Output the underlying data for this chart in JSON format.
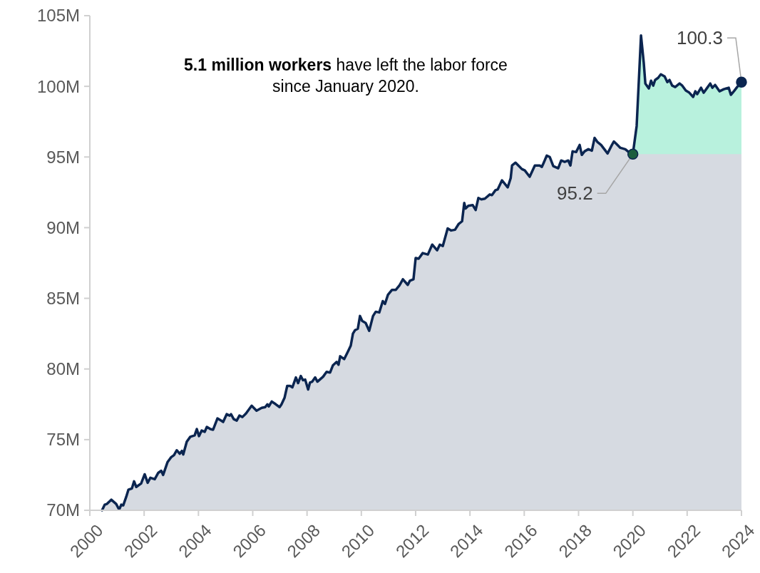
{
  "chart_data": {
    "type": "area",
    "x": [
      2000.45,
      2000.55,
      2000.63,
      2000.79,
      2000.97,
      2001.08,
      2001.16,
      2001.23,
      2001.34,
      2001.42,
      2001.55,
      2001.63,
      2001.71,
      2001.89,
      2002.02,
      2002.13,
      2002.23,
      2002.39,
      2002.52,
      2002.63,
      2002.7,
      2002.86,
      2002.99,
      2003.1,
      2003.2,
      2003.31,
      2003.39,
      2003.44,
      2003.57,
      2003.7,
      2003.86,
      2003.94,
      2004.02,
      2004.12,
      2004.23,
      2004.31,
      2004.44,
      2004.54,
      2004.7,
      2004.83,
      2004.91,
      2005.04,
      2005.15,
      2005.2,
      2005.3,
      2005.41,
      2005.51,
      2005.62,
      2005.75,
      2005.96,
      2006.14,
      2006.33,
      2006.46,
      2006.54,
      2006.59,
      2006.7,
      2006.85,
      2006.99,
      2007.06,
      2007.17,
      2007.27,
      2007.38,
      2007.46,
      2007.59,
      2007.67,
      2007.77,
      2007.85,
      2007.93,
      2008.04,
      2008.11,
      2008.19,
      2008.3,
      2008.38,
      2008.59,
      2008.72,
      2008.85,
      2008.95,
      2009.09,
      2009.16,
      2009.22,
      2009.37,
      2009.51,
      2009.61,
      2009.69,
      2009.77,
      2009.87,
      2009.95,
      2010.03,
      2010.16,
      2010.29,
      2010.43,
      2010.53,
      2010.66,
      2010.79,
      2010.87,
      2010.98,
      2011.13,
      2011.27,
      2011.4,
      2011.53,
      2011.71,
      2011.79,
      2011.92,
      2012.0,
      2012.11,
      2012.26,
      2012.45,
      2012.61,
      2012.79,
      2012.89,
      2013.0,
      2013.18,
      2013.31,
      2013.45,
      2013.58,
      2013.71,
      2013.79,
      2013.84,
      2013.94,
      2014.1,
      2014.21,
      2014.31,
      2014.42,
      2014.55,
      2014.73,
      2014.81,
      2014.94,
      2015.02,
      2015.18,
      2015.39,
      2015.5,
      2015.55,
      2015.68,
      2015.81,
      2015.91,
      2016.02,
      2016.2,
      2016.39,
      2016.57,
      2016.65,
      2016.83,
      2016.94,
      2017.07,
      2017.25,
      2017.36,
      2017.49,
      2017.62,
      2017.7,
      2017.78,
      2017.91,
      2018.04,
      2018.12,
      2018.22,
      2018.36,
      2018.49,
      2018.59,
      2018.7,
      2018.83,
      2018.93,
      2019.07,
      2019.2,
      2019.3,
      2019.41,
      2019.54,
      2019.72,
      2019.88,
      2020.0,
      2020.14,
      2020.3,
      2020.4,
      2020.46,
      2020.59,
      2020.67,
      2020.75,
      2020.82,
      2020.93,
      2021.03,
      2021.17,
      2021.27,
      2021.35,
      2021.45,
      2021.56,
      2021.72,
      2021.82,
      2021.95,
      2022.08,
      2022.22,
      2022.3,
      2022.37,
      2022.51,
      2022.61,
      2022.74,
      2022.85,
      2022.93,
      2023.03,
      2023.19,
      2023.35,
      2023.53,
      2023.61,
      2023.74,
      2023.84,
      2024.0
    ],
    "series": [
      {
        "color": "#0b2550",
        "values": [
          70.0,
          70.4,
          70.45,
          70.75,
          70.45,
          70.05,
          70.4,
          70.35,
          70.95,
          71.45,
          71.55,
          72.05,
          71.65,
          71.9,
          72.55,
          71.95,
          72.3,
          72.2,
          72.65,
          72.8,
          72.5,
          73.4,
          73.75,
          73.9,
          74.25,
          74.0,
          74.2,
          73.95,
          74.85,
          75.2,
          75.3,
          75.75,
          75.25,
          75.65,
          75.55,
          75.9,
          75.75,
          75.7,
          76.5,
          76.35,
          76.25,
          76.8,
          76.7,
          76.8,
          76.45,
          76.35,
          76.7,
          76.6,
          76.85,
          77.4,
          77.05,
          77.25,
          77.3,
          77.5,
          77.35,
          77.7,
          77.5,
          77.3,
          77.5,
          77.95,
          78.8,
          78.8,
          78.7,
          79.4,
          79.0,
          79.5,
          79.2,
          79.25,
          78.55,
          79.05,
          79.1,
          79.4,
          79.1,
          79.45,
          79.8,
          79.75,
          80.25,
          80.5,
          80.3,
          80.9,
          80.7,
          81.25,
          81.65,
          82.5,
          82.75,
          82.85,
          83.75,
          83.4,
          83.25,
          82.7,
          83.75,
          84.05,
          84.0,
          84.8,
          84.6,
          85.25,
          85.6,
          85.6,
          85.9,
          86.35,
          85.95,
          86.25,
          86.35,
          87.85,
          87.8,
          88.2,
          88.1,
          88.8,
          88.4,
          88.8,
          88.7,
          89.95,
          89.8,
          89.85,
          90.25,
          90.45,
          91.75,
          91.35,
          91.55,
          91.6,
          91.25,
          92.1,
          92.0,
          92.05,
          92.35,
          92.3,
          92.65,
          92.7,
          93.35,
          92.85,
          93.5,
          94.4,
          94.6,
          94.35,
          94.15,
          94.05,
          93.6,
          94.4,
          94.4,
          94.3,
          95.1,
          95.0,
          94.35,
          94.2,
          94.75,
          94.65,
          94.75,
          94.4,
          95.4,
          95.35,
          95.85,
          95.15,
          95.4,
          95.55,
          95.45,
          96.35,
          96.05,
          95.85,
          95.6,
          95.25,
          95.75,
          96.1,
          95.9,
          95.65,
          95.55,
          95.3,
          95.2,
          97.2,
          103.6,
          101.7,
          100.2,
          99.85,
          100.4,
          100.05,
          100.45,
          100.6,
          100.85,
          100.7,
          100.3,
          100.45,
          100.05,
          99.95,
          100.2,
          100.05,
          99.7,
          99.55,
          99.25,
          99.65,
          99.45,
          99.9,
          99.55,
          99.9,
          100.2,
          99.9,
          100.1,
          99.65,
          99.8,
          99.9,
          99.4,
          99.7,
          99.95,
          100.3
        ]
      },
      {
        "type": "area",
        "color": "#b8f1dd",
        "x": [
          2020.0,
          2020.14,
          2020.3,
          2020.4,
          2020.46,
          2020.59,
          2020.67,
          2020.75,
          2020.82,
          2020.93,
          2021.03,
          2021.17,
          2021.27,
          2021.35,
          2021.45,
          2021.56,
          2021.72,
          2021.82,
          2021.95,
          2022.08,
          2022.22,
          2022.3,
          2022.37,
          2022.51,
          2022.61,
          2022.74,
          2022.85,
          2022.93,
          2023.03,
          2023.19,
          2023.35,
          2023.53,
          2023.61,
          2023.74,
          2023.84,
          2024.0
        ],
        "values": [
          95.2,
          97.2,
          103.6,
          101.7,
          100.2,
          99.85,
          100.4,
          100.05,
          100.45,
          100.6,
          100.85,
          100.7,
          100.3,
          100.45,
          100.05,
          99.95,
          100.2,
          100.05,
          99.7,
          99.55,
          99.25,
          99.65,
          99.45,
          99.9,
          99.55,
          99.9,
          100.2,
          99.9,
          100.1,
          99.65,
          99.8,
          99.9,
          99.4,
          99.7,
          99.95,
          100.3
        ]
      }
    ],
    "xlim": [
      2000,
      2024
    ],
    "xticks": [
      2000,
      2002,
      2004,
      2006,
      2008,
      2010,
      2012,
      2014,
      2016,
      2018,
      2020,
      2022,
      2024
    ],
    "ylim": [
      70,
      105
    ],
    "yticks": [
      {
        "value": 70,
        "label": "70M"
      },
      {
        "value": 75,
        "label": "75M"
      },
      {
        "value": 80,
        "label": "80M"
      },
      {
        "value": 85,
        "label": "85M"
      },
      {
        "value": 90,
        "label": "90M"
      },
      {
        "value": 95,
        "label": "95M"
      },
      {
        "value": 100,
        "label": "100M"
      },
      {
        "value": 105,
        "label": "105M"
      }
    ],
    "grid": false,
    "annotations": [
      "5.1 million workers",
      "have left the labor force since January 2020.",
      {
        "text": "95.2",
        "x": 2020.0,
        "y": 95.2
      },
      {
        "text": "100.3",
        "x": 2024.0,
        "y": 100.3
      }
    ]
  }
}
